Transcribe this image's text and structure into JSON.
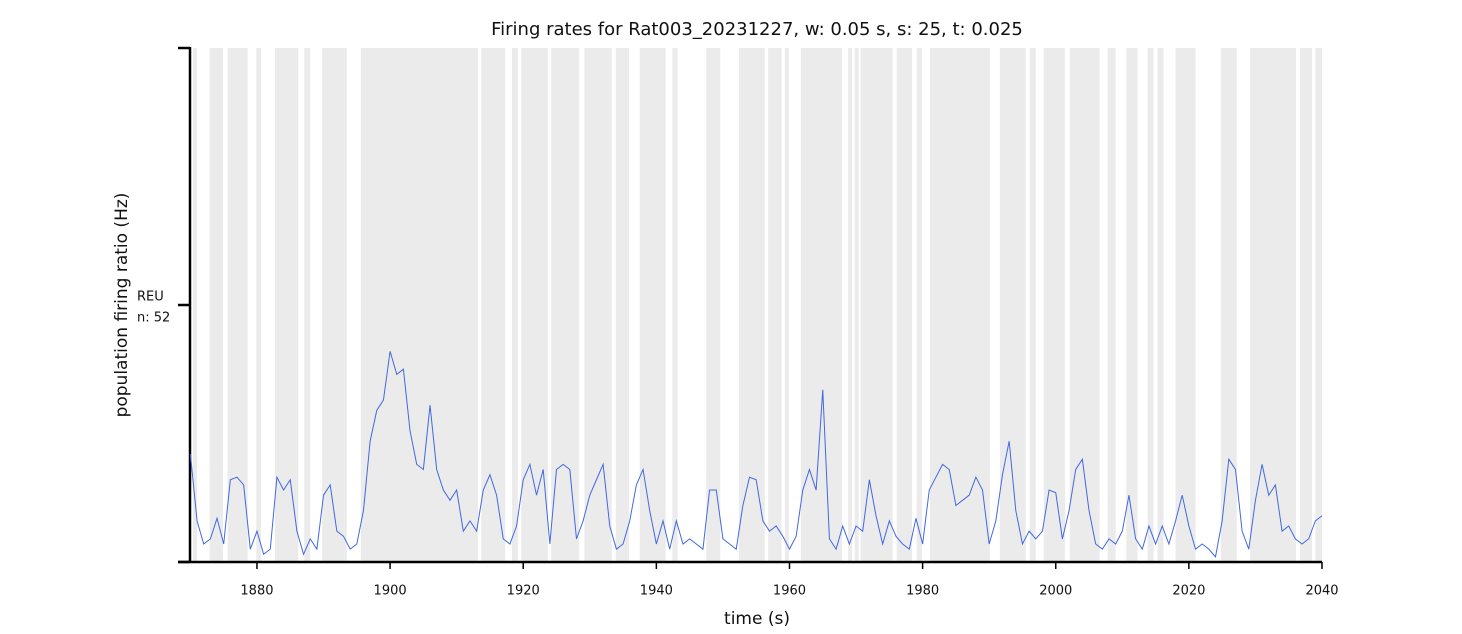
{
  "chart_data": {
    "type": "line",
    "title": "Firing rates for Rat003_20231227, w: 0.05 s, s: 25, t: 0.025",
    "x_label": "time (s)",
    "y_label": "population firing ratio (Hz)",
    "annotation": [
      "REU",
      "n: 52"
    ],
    "xlim": [
      1870,
      2040
    ],
    "xticks": [
      1880,
      1900,
      1920,
      1940,
      1960,
      1980,
      2000,
      2020,
      2040
    ],
    "ylim": [
      0,
      2
    ],
    "yticks": [
      0,
      1,
      2
    ],
    "span_color": "#ebebeb",
    "shaded_spans": [
      [
        1870.4,
        1871.0
      ],
      [
        1872.9,
        1874.9
      ],
      [
        1875.6,
        1878.6
      ],
      [
        1879.9,
        1880.6
      ],
      [
        1882.7,
        1886.2
      ],
      [
        1887.1,
        1888.0
      ],
      [
        1889.8,
        1893.5
      ],
      [
        1895.6,
        1913.2
      ],
      [
        1913.7,
        1917.3
      ],
      [
        1918.3,
        1919.2
      ],
      [
        1919.7,
        1923.7
      ],
      [
        1924.2,
        1928.4
      ],
      [
        1929.2,
        1933.3
      ],
      [
        1933.9,
        1935.9
      ],
      [
        1937.5,
        1941.4
      ],
      [
        1942.4,
        1943.2
      ],
      [
        1947.5,
        1949.6
      ],
      [
        1952.4,
        1956.3
      ],
      [
        1956.8,
        1958.8
      ],
      [
        1959.3,
        1959.9
      ],
      [
        1961.7,
        1967.9
      ],
      [
        1968.8,
        1969.4
      ],
      [
        1969.8,
        1970.4
      ],
      [
        1970.7,
        1975.5
      ],
      [
        1976.1,
        1978.4
      ],
      [
        1979.1,
        1979.9
      ],
      [
        1981.1,
        1990.1
      ],
      [
        1991.6,
        1995.5
      ],
      [
        1996.1,
        1997.0
      ],
      [
        1998.2,
        2001.4
      ],
      [
        2002.1,
        2006.6
      ],
      [
        2007.8,
        2009.0
      ],
      [
        2010.6,
        2012.3
      ],
      [
        2013.8,
        2014.7
      ],
      [
        2015.3,
        2016.2
      ],
      [
        2018.0,
        2021.0
      ],
      [
        2024.8,
        2027.2
      ],
      [
        2029.2,
        2036.1
      ],
      [
        2036.7,
        2038.5
      ],
      [
        2039.0,
        2040.0
      ]
    ],
    "x": [
      1870,
      1871,
      1872,
      1873,
      1874,
      1875,
      1876,
      1877,
      1878,
      1879,
      1880,
      1881,
      1882,
      1883,
      1884,
      1885,
      1886,
      1887,
      1888,
      1889,
      1890,
      1891,
      1892,
      1893,
      1894,
      1895,
      1896,
      1897,
      1898,
      1899,
      1900,
      1901,
      1902,
      1903,
      1904,
      1905,
      1906,
      1907,
      1908,
      1909,
      1910,
      1911,
      1912,
      1913,
      1914,
      1915,
      1916,
      1917,
      1918,
      1919,
      1920,
      1921,
      1922,
      1923,
      1924,
      1925,
      1926,
      1927,
      1928,
      1929,
      1930,
      1931,
      1932,
      1933,
      1934,
      1935,
      1936,
      1937,
      1938,
      1939,
      1940,
      1941,
      1942,
      1943,
      1944,
      1945,
      1946,
      1947,
      1948,
      1949,
      1950,
      1951,
      1952,
      1953,
      1954,
      1955,
      1956,
      1957,
      1958,
      1959,
      1960,
      1961,
      1962,
      1963,
      1964,
      1965,
      1966,
      1967,
      1968,
      1969,
      1970,
      1971,
      1972,
      1973,
      1974,
      1975,
      1976,
      1977,
      1978,
      1979,
      1980,
      1981,
      1982,
      1983,
      1984,
      1985,
      1986,
      1987,
      1988,
      1989,
      1990,
      1991,
      1992,
      1993,
      1994,
      1995,
      1996,
      1997,
      1998,
      1999,
      2000,
      2001,
      2002,
      2003,
      2004,
      2005,
      2006,
      2007,
      2008,
      2009,
      2010,
      2011,
      2012,
      2013,
      2014,
      2015,
      2016,
      2017,
      2018,
      2019,
      2020,
      2021,
      2022,
      2023,
      2024,
      2025,
      2026,
      2027,
      2028,
      2029,
      2030,
      2031,
      2032,
      2033,
      2034,
      2035,
      2036,
      2037,
      2038,
      2039,
      2040
    ],
    "series": [
      {
        "color": "#4169e1",
        "values": [
          0.42,
          0.16,
          0.07,
          0.09,
          0.17,
          0.07,
          0.32,
          0.33,
          0.3,
          0.05,
          0.12,
          0.03,
          0.05,
          0.33,
          0.28,
          0.32,
          0.12,
          0.03,
          0.09,
          0.05,
          0.26,
          0.3,
          0.12,
          0.1,
          0.05,
          0.07,
          0.2,
          0.47,
          0.59,
          0.63,
          0.82,
          0.73,
          0.75,
          0.51,
          0.38,
          0.36,
          0.61,
          0.36,
          0.28,
          0.24,
          0.28,
          0.12,
          0.16,
          0.12,
          0.28,
          0.34,
          0.26,
          0.09,
          0.07,
          0.14,
          0.32,
          0.38,
          0.26,
          0.36,
          0.07,
          0.36,
          0.38,
          0.36,
          0.09,
          0.16,
          0.26,
          0.32,
          0.38,
          0.14,
          0.05,
          0.07,
          0.16,
          0.3,
          0.36,
          0.2,
          0.07,
          0.16,
          0.05,
          0.16,
          0.07,
          0.09,
          0.07,
          0.05,
          0.28,
          0.28,
          0.09,
          0.07,
          0.05,
          0.22,
          0.33,
          0.32,
          0.16,
          0.12,
          0.14,
          0.1,
          0.05,
          0.1,
          0.28,
          0.36,
          0.28,
          0.67,
          0.09,
          0.05,
          0.14,
          0.07,
          0.14,
          0.12,
          0.32,
          0.18,
          0.07,
          0.16,
          0.1,
          0.07,
          0.05,
          0.17,
          0.07,
          0.28,
          0.33,
          0.38,
          0.36,
          0.22,
          0.24,
          0.26,
          0.33,
          0.28,
          0.07,
          0.16,
          0.34,
          0.47,
          0.2,
          0.07,
          0.12,
          0.09,
          0.12,
          0.28,
          0.27,
          0.09,
          0.2,
          0.36,
          0.4,
          0.2,
          0.07,
          0.05,
          0.09,
          0.07,
          0.12,
          0.26,
          0.09,
          0.05,
          0.14,
          0.07,
          0.14,
          0.07,
          0.16,
          0.26,
          0.14,
          0.05,
          0.07,
          0.05,
          0.02,
          0.16,
          0.4,
          0.36,
          0.12,
          0.05,
          0.24,
          0.38,
          0.26,
          0.3,
          0.12,
          0.14,
          0.09,
          0.07,
          0.09,
          0.16,
          0.18
        ]
      }
    ]
  }
}
